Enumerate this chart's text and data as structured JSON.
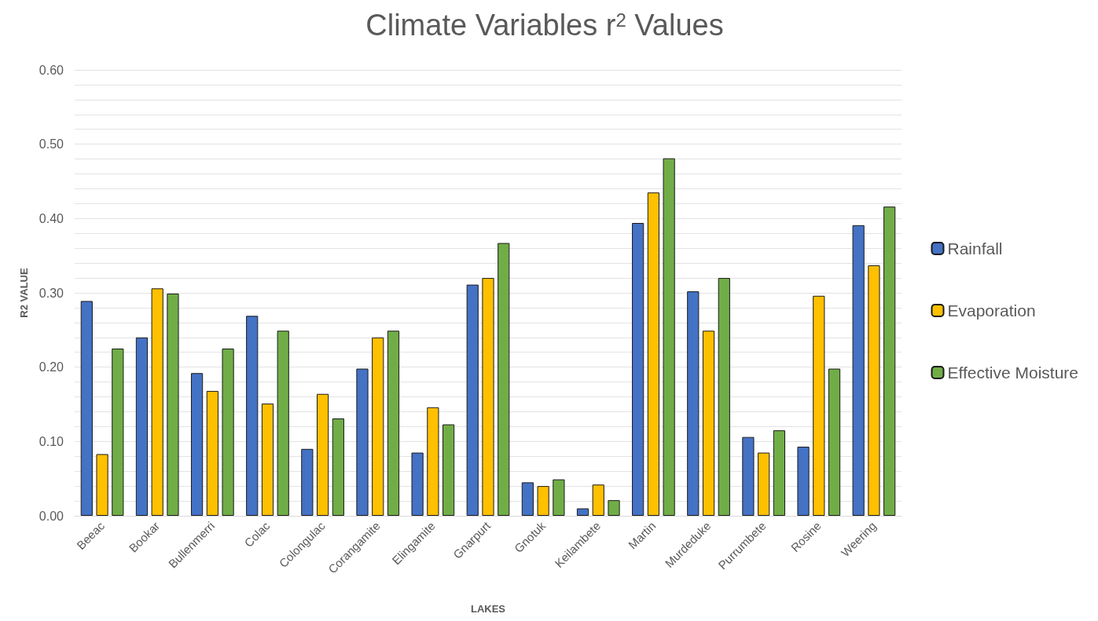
{
  "chart_data": {
    "type": "bar",
    "title": "Climate Variables r$^{2}$ Values",
    "xlabel": "LAKES",
    "ylabel": "R2 VALUE",
    "categories": [
      "Beeac",
      "Bookar",
      "Bullenmerri",
      "Colac",
      "Colongulac",
      "Corangamite",
      "Elingamite",
      "Gnarpurt",
      "Gnotuk",
      "Keilambete",
      "Martin",
      "Murdeduke",
      "Purrumbete",
      "Rosine",
      "Weering"
    ],
    "series": [
      {
        "name": "Rainfall",
        "color": "#4472c4",
        "values": [
          0.289,
          0.24,
          0.192,
          0.269,
          0.09,
          0.198,
          0.085,
          0.311,
          0.045,
          0.01,
          0.394,
          0.302,
          0.106,
          0.093,
          0.391
        ]
      },
      {
        "name": "Evaporation",
        "color": "#ffc000",
        "values": [
          0.083,
          0.306,
          0.168,
          0.151,
          0.164,
          0.24,
          0.146,
          0.32,
          0.04,
          0.042,
          0.435,
          0.249,
          0.085,
          0.296,
          0.337
        ]
      },
      {
        "name": "Effective Moisture",
        "color": "#70ad47",
        "values": [
          0.225,
          0.299,
          0.225,
          0.249,
          0.131,
          0.249,
          0.123,
          0.367,
          0.049,
          0.021,
          0.481,
          0.32,
          0.115,
          0.198,
          0.416
        ]
      }
    ],
    "ylim": [
      0,
      0.6
    ],
    "yticks": [
      {
        "value": 0,
        "label": "0.00"
      },
      {
        "value": 0.02,
        "label": null
      },
      {
        "value": 0.04,
        "label": null
      },
      {
        "value": 0.06,
        "label": null
      },
      {
        "value": 0.08,
        "label": null
      },
      {
        "value": 0.1,
        "label": "0.10"
      },
      {
        "value": 0.12,
        "label": null
      },
      {
        "value": 0.14,
        "label": null
      },
      {
        "value": 0.16,
        "label": null
      },
      {
        "value": 0.18,
        "label": null
      },
      {
        "value": 0.2,
        "label": "0.20"
      },
      {
        "value": 0.22,
        "label": null
      },
      {
        "value": 0.24,
        "label": null
      },
      {
        "value": 0.26,
        "label": null
      },
      {
        "value": 0.28,
        "label": null
      },
      {
        "value": 0.3,
        "label": "0.30"
      },
      {
        "value": 0.32,
        "label": null
      },
      {
        "value": 0.34,
        "label": null
      },
      {
        "value": 0.36,
        "label": null
      },
      {
        "value": 0.38,
        "label": null
      },
      {
        "value": 0.4,
        "label": "0.40"
      },
      {
        "value": 0.42,
        "label": null
      },
      {
        "value": 0.44,
        "label": null
      },
      {
        "value": 0.46,
        "label": null
      },
      {
        "value": 0.48,
        "label": null
      },
      {
        "value": 0.5,
        "label": "0.50"
      },
      {
        "value": 0.52,
        "label": null
      },
      {
        "value": 0.54,
        "label": null
      },
      {
        "value": 0.56,
        "label": null
      },
      {
        "value": 0.58,
        "label": null
      },
      {
        "value": 0.6,
        "label": "0.60"
      }
    ],
    "grid": true,
    "legend": "right"
  }
}
